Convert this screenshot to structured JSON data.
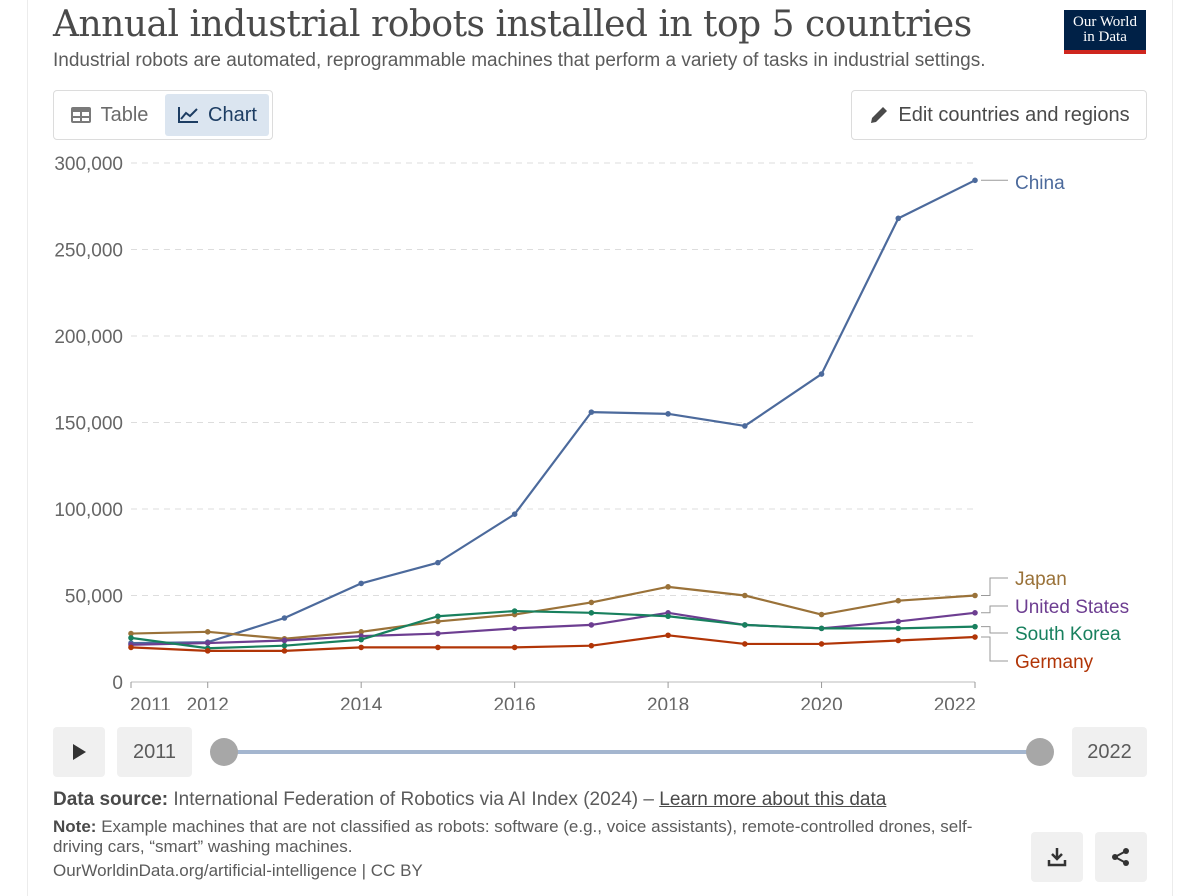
{
  "header": {
    "title": "Annual industrial robots installed in top 5 countries",
    "subtitle": "Industrial robots are automated, reprogrammable machines that perform a variety of tasks in industrial settings.",
    "logo_line1": "Our World",
    "logo_line2": "in Data"
  },
  "tabs": [
    {
      "label": "Table",
      "icon": "table-icon",
      "active": false
    },
    {
      "label": "Chart",
      "icon": "line-chart-icon",
      "active": true
    }
  ],
  "edit_button": {
    "label": "Edit countries and regions",
    "icon": "pencil-icon"
  },
  "chart_data": {
    "type": "line",
    "title": "Annual industrial robots installed in top 5 countries",
    "subtitle": "Industrial robots are automated, reprogrammable machines that perform a variety of tasks in industrial settings.",
    "x": [
      2011,
      2012,
      2013,
      2014,
      2015,
      2016,
      2017,
      2018,
      2019,
      2020,
      2021,
      2022
    ],
    "x_tick_labels": [
      "2011",
      "2012",
      "2014",
      "2016",
      "2018",
      "2020",
      "2022"
    ],
    "y_tick_labels": [
      "0",
      "50,000",
      "100,000",
      "150,000",
      "200,000",
      "250,000",
      "300,000"
    ],
    "y_ticks": [
      0,
      50000,
      100000,
      150000,
      200000,
      250000,
      300000
    ],
    "ylim": [
      0,
      300000
    ],
    "xlim": [
      2011,
      2022
    ],
    "grid": "horizontal dashed",
    "legend": "inline labels at right end",
    "series": [
      {
        "name": "China",
        "color": "#4c6a9c",
        "values": [
          22500,
          23000,
          37000,
          57000,
          69000,
          97000,
          156000,
          155000,
          148000,
          178000,
          268000,
          290000
        ]
      },
      {
        "name": "Japan",
        "color": "#9a7239",
        "values": [
          28000,
          29000,
          25000,
          29000,
          35000,
          39000,
          46000,
          55000,
          50000,
          39000,
          47000,
          50000
        ]
      },
      {
        "name": "United States",
        "color": "#6d3e91",
        "values": [
          21500,
          22500,
          24000,
          26500,
          28000,
          31000,
          33000,
          40000,
          33000,
          31000,
          35000,
          40000
        ]
      },
      {
        "name": "South Korea",
        "color": "#18805e",
        "values": [
          25500,
          19500,
          21000,
          24500,
          38000,
          41000,
          40000,
          38000,
          33000,
          31000,
          31000,
          32000
        ]
      },
      {
        "name": "Germany",
        "color": "#b13507",
        "values": [
          20000,
          18000,
          18000,
          20000,
          20000,
          20000,
          21000,
          27000,
          22000,
          22000,
          24000,
          26000
        ]
      }
    ]
  },
  "timeline": {
    "start_label": "2011",
    "end_label": "2022",
    "play_icon": "play-icon"
  },
  "footer": {
    "source_label": "Data source:",
    "source_text": "International Federation of Robotics via AI Index (2024) – ",
    "source_link": "Learn more about this data",
    "note_label": "Note:",
    "note_text": "Example machines that are not classified as robots: software (e.g., voice assistants), remote-controlled drones, self-driving cars, “smart” washing machines.",
    "url": "OurWorldinData.org/artificial-intelligence | CC BY"
  },
  "actions": {
    "download_icon": "download-icon",
    "share_icon": "share-icon"
  }
}
